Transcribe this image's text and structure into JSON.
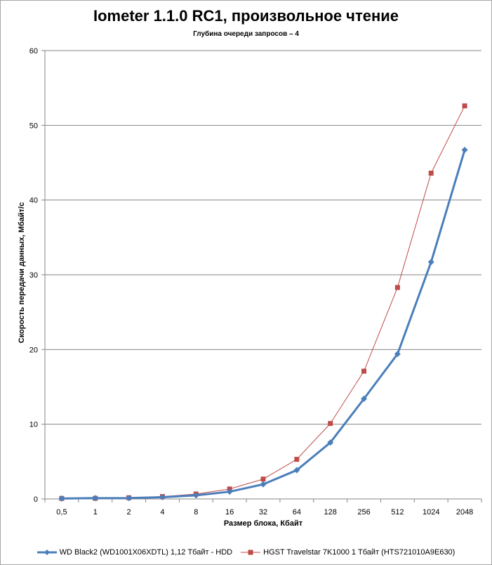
{
  "chart_data": {
    "type": "line",
    "title": "Iometer 1.1.0 RC1, произвольное чтение",
    "subtitle": "Глубина очереди запросов – 4",
    "xlabel": "Размер блока, Кбайт",
    "ylabel": "Скорость передачи данных, Мбайт/с",
    "categories": [
      "0,5",
      "1",
      "2",
      "4",
      "8",
      "16",
      "32",
      "64",
      "128",
      "256",
      "512",
      "1024",
      "2048"
    ],
    "ylim": [
      0,
      60
    ],
    "yticks": [
      0,
      10,
      20,
      30,
      40,
      50,
      60
    ],
    "grid": true,
    "legend_position": "bottom",
    "series": [
      {
        "name": "WD Black2 (WD1001X06XDTL) 1,12 Тбайт - HDD",
        "color": "#4a7ebb",
        "marker": "diamond",
        "values": [
          0.06,
          0.11,
          0.12,
          0.24,
          0.48,
          0.97,
          1.96,
          3.85,
          7.55,
          13.4,
          19.4,
          31.7,
          46.7
        ]
      },
      {
        "name": "HGST Travelstar 7K1000 1 Тбайт (HTS721010A9E630)",
        "color": "#be4b48",
        "marker": "square",
        "values": [
          0.07,
          0.08,
          0.16,
          0.32,
          0.66,
          1.33,
          2.66,
          5.3,
          10.1,
          17.1,
          28.3,
          43.6,
          52.6
        ]
      }
    ]
  }
}
